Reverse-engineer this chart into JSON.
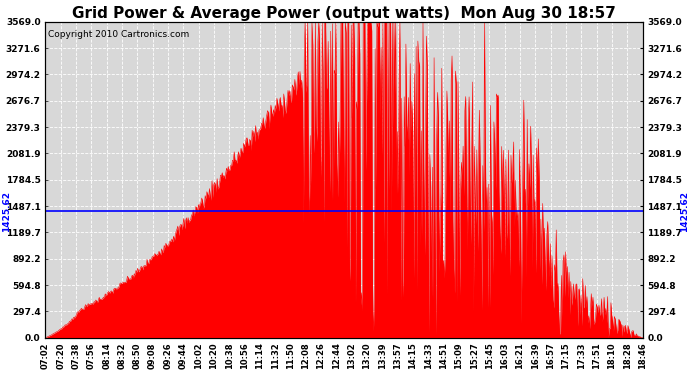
{
  "title": "Grid Power & Average Power (output watts)  Mon Aug 30 18:57",
  "copyright": "Copyright 2010 Cartronics.com",
  "avg_power": 1425.62,
  "y_max": 3569.0,
  "y_ticks": [
    0.0,
    297.4,
    594.8,
    892.2,
    1189.7,
    1487.1,
    1784.5,
    2081.9,
    2379.3,
    2676.7,
    2974.2,
    3271.6,
    3569.0
  ],
  "y_tick_labels": [
    "0.0",
    "297.4",
    "594.8",
    "892.2",
    "1189.7",
    "1487.1",
    "1784.5",
    "2081.9",
    "2379.3",
    "2676.7",
    "2974.2",
    "3271.6",
    "3569.0"
  ],
  "x_tick_labels": [
    "07:02",
    "07:20",
    "07:38",
    "07:56",
    "08:14",
    "08:32",
    "08:50",
    "09:08",
    "09:26",
    "09:44",
    "10:02",
    "10:20",
    "10:38",
    "10:56",
    "11:14",
    "11:32",
    "11:50",
    "12:08",
    "12:26",
    "12:44",
    "13:02",
    "13:20",
    "13:39",
    "13:57",
    "14:15",
    "14:33",
    "14:51",
    "15:09",
    "15:27",
    "15:45",
    "16:03",
    "16:21",
    "16:39",
    "16:57",
    "17:15",
    "17:33",
    "17:51",
    "18:10",
    "18:28",
    "18:46"
  ],
  "fill_color": "#FF0000",
  "line_color": "#FF0000",
  "avg_line_color": "#0000FF",
  "background_color": "#D8D8D8",
  "grid_color": "#FFFFFF",
  "title_fontsize": 11,
  "avg_label": "1425.62",
  "fig_width": 6.9,
  "fig_height": 3.75,
  "dpi": 100
}
